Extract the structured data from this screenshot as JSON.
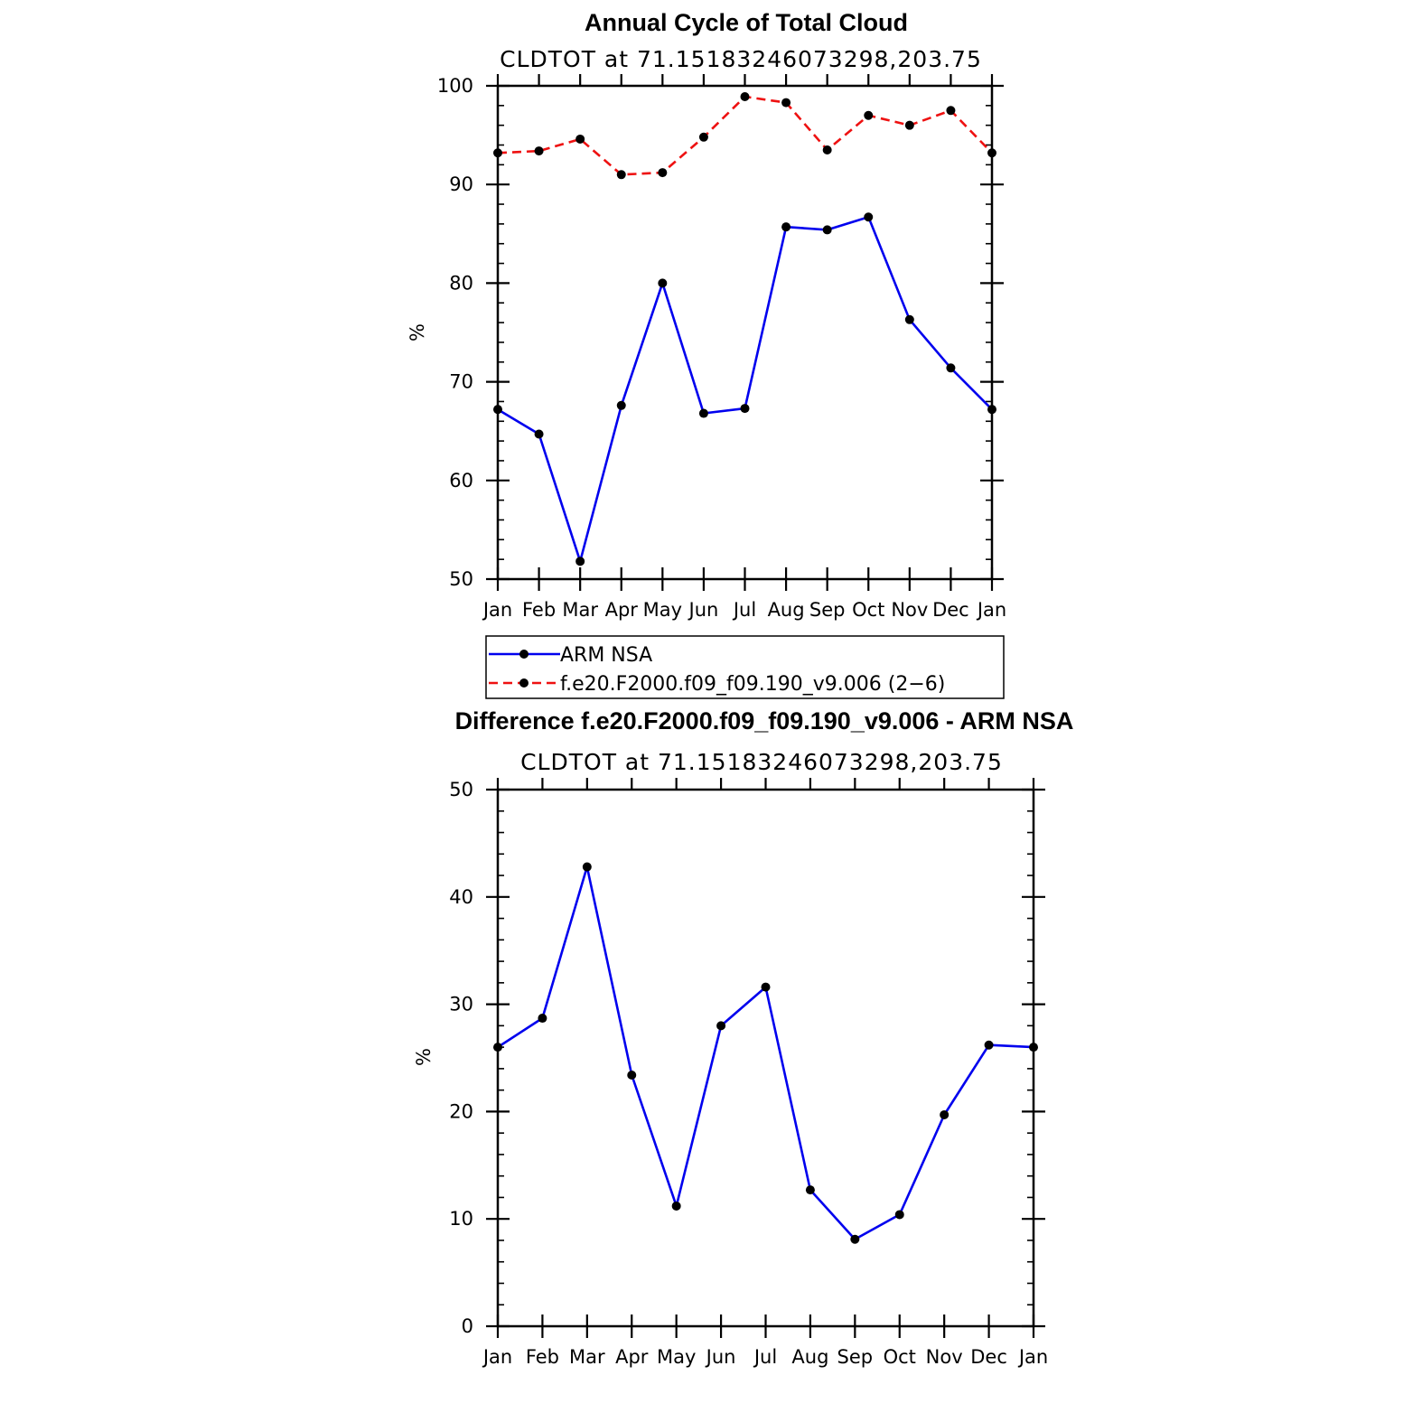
{
  "chart_data": [
    {
      "type": "line",
      "title": "Annual Cycle of Total Cloud",
      "subtitle": "CLDTOT at 71.15183246073298,203.75",
      "ylabel": "%",
      "xlabel": "",
      "categories": [
        "Jan",
        "Feb",
        "Mar",
        "Apr",
        "May",
        "Jun",
        "Jul",
        "Aug",
        "Sep",
        "Oct",
        "Nov",
        "Dec",
        "Jan"
      ],
      "ylim": [
        50,
        100
      ],
      "yticks": [
        50,
        60,
        70,
        80,
        90,
        100
      ],
      "grid": false,
      "legend_position": "bottom",
      "series": [
        {
          "name": "ARM NSA",
          "color": "#0000ee",
          "style": "solid",
          "values": [
            67.2,
            64.7,
            51.8,
            67.6,
            80.0,
            66.8,
            67.3,
            85.7,
            85.4,
            86.7,
            76.3,
            71.4,
            67.2
          ]
        },
        {
          "name": "f.e20.F2000.f09_f09.190_v9.006 (2−6)",
          "color": "#ee1111",
          "style": "dashed",
          "values": [
            93.2,
            93.4,
            94.6,
            91.0,
            91.2,
            94.8,
            98.9,
            98.3,
            93.5,
            97.0,
            96.0,
            97.5,
            93.2
          ]
        }
      ]
    },
    {
      "type": "line",
      "title": "Difference f.e20.F2000.f09_f09.190_v9.006 - ARM NSA",
      "subtitle": "CLDTOT at 71.15183246073298,203.75",
      "ylabel": "%",
      "xlabel": "",
      "categories": [
        "Jan",
        "Feb",
        "Mar",
        "Apr",
        "May",
        "Jun",
        "Jul",
        "Aug",
        "Sep",
        "Oct",
        "Nov",
        "Dec",
        "Jan"
      ],
      "ylim": [
        0,
        50
      ],
      "yticks": [
        0,
        10,
        20,
        30,
        40,
        50
      ],
      "grid": false,
      "series": [
        {
          "color": "#0000ee",
          "style": "solid",
          "values": [
            26.0,
            28.7,
            42.8,
            23.4,
            11.2,
            28.0,
            31.6,
            12.7,
            8.1,
            10.4,
            19.7,
            26.2,
            26.0
          ]
        }
      ]
    }
  ]
}
